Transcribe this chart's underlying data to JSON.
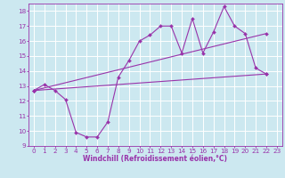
{
  "background_color": "#cce8f0",
  "grid_color": "#ffffff",
  "line_color": "#9933aa",
  "marker_color": "#9933aa",
  "xlabel": "Windchill (Refroidissement éolien,°C)",
  "xlabel_fontsize": 5.5,
  "tick_fontsize": 5.2,
  "xlim": [
    -0.5,
    23.5
  ],
  "ylim": [
    9,
    18.5
  ],
  "yticks": [
    9,
    10,
    11,
    12,
    13,
    14,
    15,
    16,
    17,
    18
  ],
  "xticks": [
    0,
    1,
    2,
    3,
    4,
    5,
    6,
    7,
    8,
    9,
    10,
    11,
    12,
    13,
    14,
    15,
    16,
    17,
    18,
    19,
    20,
    21,
    22,
    23
  ],
  "line1_x": [
    0,
    1,
    2,
    3,
    4,
    5,
    6,
    7,
    8,
    9,
    10,
    11,
    12,
    13,
    14,
    15,
    16,
    17,
    18,
    19,
    20,
    21,
    22
  ],
  "line1_y": [
    12.7,
    13.1,
    12.7,
    12.1,
    9.9,
    9.6,
    9.6,
    10.6,
    13.6,
    14.7,
    16.0,
    16.4,
    17.0,
    17.0,
    15.2,
    17.5,
    15.2,
    16.6,
    18.3,
    17.0,
    16.5,
    14.2,
    13.8
  ],
  "line2_x": [
    0,
    22
  ],
  "line2_y": [
    12.7,
    13.8
  ],
  "line3_x": [
    0,
    22
  ],
  "line3_y": [
    12.7,
    16.5
  ]
}
